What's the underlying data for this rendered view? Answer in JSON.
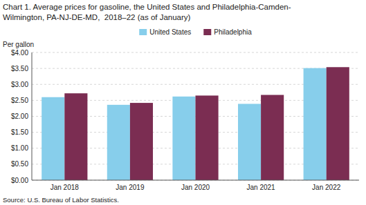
{
  "chart_data": {
    "type": "bar",
    "title": "Chart 1. Average prices for gasoline, the United States and Philadelphia-Camden-",
    "subtitle": "Wilmington, PA-NJ-DE-MD,  2018–22 (as of January)",
    "ylabel": "Per gallon",
    "source": "Source: U.S. Bureau of Labor Statistics.",
    "categories": [
      "Jan 2018",
      "Jan 2019",
      "Jan 2020",
      "Jan 2021",
      "Jan 2022"
    ],
    "series": [
      {
        "name": "United States",
        "color": "#87CEEB",
        "values": [
          2.6,
          2.36,
          2.62,
          2.39,
          3.51
        ]
      },
      {
        "name": "Philadelphia",
        "color": "#7B2D52",
        "values": [
          2.72,
          2.42,
          2.65,
          2.67,
          3.54
        ]
      }
    ],
    "ylim": [
      0,
      4.0
    ],
    "yticks": [
      {
        "value": 0.0,
        "label": "$0.00"
      },
      {
        "value": 0.5,
        "label": "$0.50"
      },
      {
        "value": 1.0,
        "label": "$1.00"
      },
      {
        "value": 1.5,
        "label": "$1.50"
      },
      {
        "value": 2.0,
        "label": "$2.00"
      },
      {
        "value": 2.5,
        "label": "$2.50"
      },
      {
        "value": 3.0,
        "label": "$3.00"
      },
      {
        "value": 3.5,
        "label": "$3.50"
      },
      {
        "value": 4.0,
        "label": "$4.00"
      }
    ],
    "grid": true,
    "legend": "top"
  }
}
